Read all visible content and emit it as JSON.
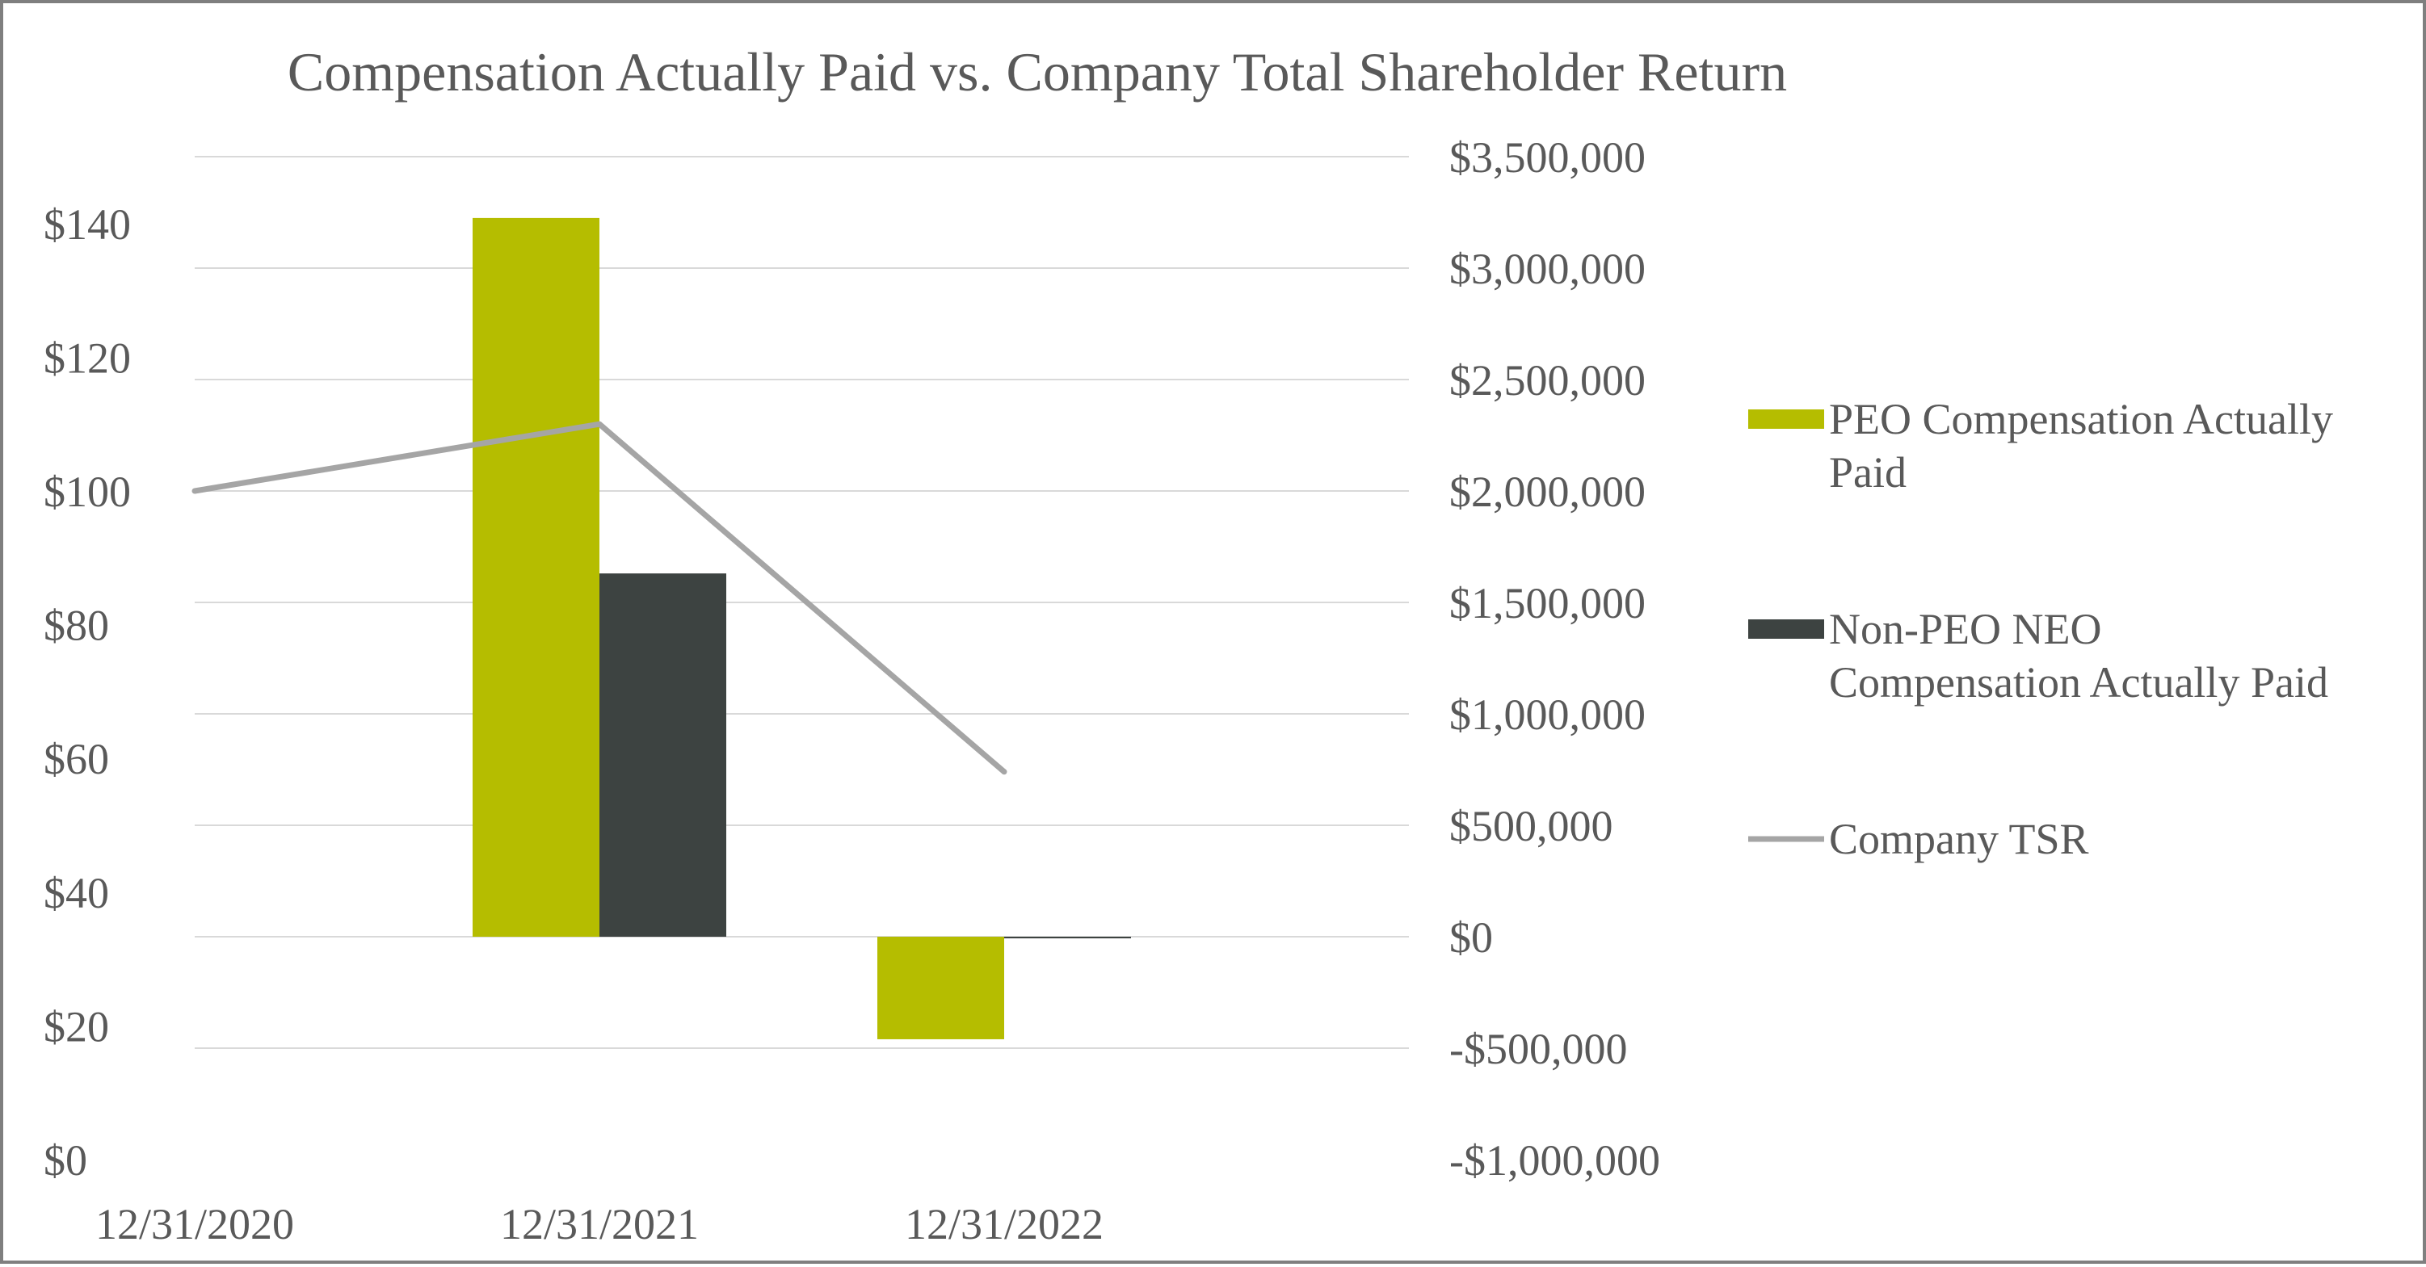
{
  "chart_data": {
    "type": "bar",
    "title": "Compensation Actually Paid vs. Company Total Shareholder Return",
    "categories": [
      "12/31/2020",
      "12/31/2021",
      "12/31/2022"
    ],
    "left_axis": {
      "range": [
        0,
        150
      ],
      "ticks": [
        0,
        20,
        40,
        60,
        80,
        100,
        120,
        140
      ],
      "tick_labels": [
        "$0",
        "$20",
        "$40",
        "$60",
        "$80",
        "$100",
        "$120",
        "$140"
      ]
    },
    "right_axis": {
      "range": [
        -1000000,
        3500000
      ],
      "ticks": [
        -1000000,
        -500000,
        0,
        500000,
        1000000,
        1500000,
        2000000,
        2500000,
        3000000,
        3500000
      ],
      "tick_labels": [
        "-$1,000,000",
        "-$500,000",
        "$0",
        "$500,000",
        "$1,000,000",
        "$1,500,000",
        "$2,000,000",
        "$2,500,000",
        "$3,000,000",
        "$3,500,000"
      ]
    },
    "grid": true,
    "legend_position": "right",
    "series": [
      {
        "name": "PEO Compensation Actually Paid",
        "name_lines": [
          "PEO Compensation Actually",
          "Paid"
        ],
        "kind": "bar",
        "axis": "right",
        "color": "#b5bd00",
        "values": [
          null,
          3225000,
          -460000
        ]
      },
      {
        "name": "Non-PEO NEO Compensation Actually Paid",
        "name_lines": [
          "Non-PEO NEO",
          "Compensation Actually Paid"
        ],
        "kind": "bar",
        "axis": "right",
        "color": "#3d4341",
        "values": [
          null,
          1630000,
          -5000
        ]
      },
      {
        "name": "Company TSR",
        "name_lines": [
          "Company TSR"
        ],
        "kind": "line",
        "axis": "left",
        "color": "#a5a5a5",
        "values": [
          100,
          110,
          58
        ]
      }
    ]
  }
}
